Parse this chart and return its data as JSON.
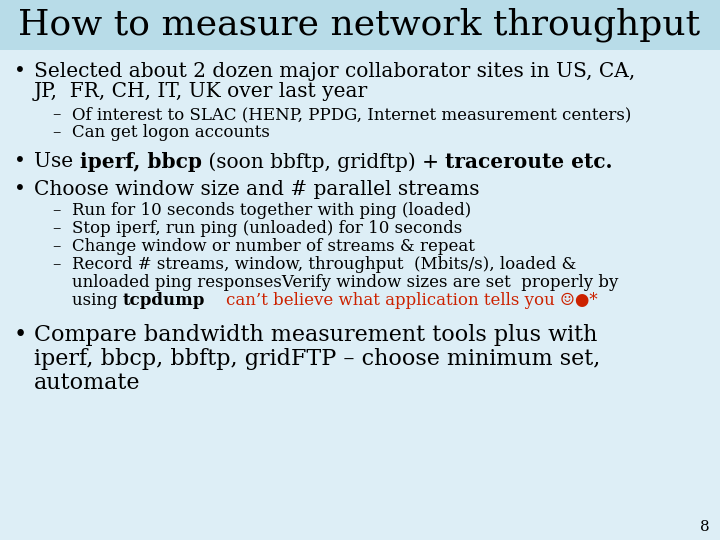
{
  "title": "How to measure network throughput",
  "title_bg": "#b8dce8",
  "bg_color": "#ddeef6",
  "title_fontsize": 26,
  "body_fontsize": 14.5,
  "sub_fontsize": 12,
  "large_fontsize": 16,
  "slide_number": "8",
  "bullet1_line1": "Selected about 2 dozen major collaborator sites in US, CA,",
  "bullet1_line2": "JP,  FR, CH, IT, UK over last year",
  "sub1a": "Of interest to SLAC (HENP, PPDG, Internet measurement centers)",
  "sub1b": "Can get logon accounts",
  "bullet2_part1": "Use ",
  "bullet2_part2": "iperf, bbcp",
  "bullet2_part3": " (soon bbftp, gridftp) + ",
  "bullet2_part4": "traceroute etc.",
  "bullet3": "Choose window size and # parallel streams",
  "sub3a": "Run for 10 seconds together with ping (loaded)",
  "sub3b": "Stop iperf, run ping (unloaded) for 10 seconds",
  "sub3c": "Change window or number of streams & repeat",
  "sub3d_line1": "Record # streams, window, throughput  (Mbits/s), loaded &",
  "sub3d_line2": "unloaded ping responsesVerify window sizes are set  properly by",
  "sub3d_line3_pre": "using ",
  "sub3d_bold": "tcpdump",
  "sub3d_red": "    can’t believe what application tells you ☺●*",
  "bullet4_line1": "Compare bandwidth measurement tools plus with",
  "bullet4_line2": "iperf, bbcp, bbftp, gridFTP – choose minimum set,",
  "bullet4_line3": "automate",
  "red_color": "#cc2200"
}
